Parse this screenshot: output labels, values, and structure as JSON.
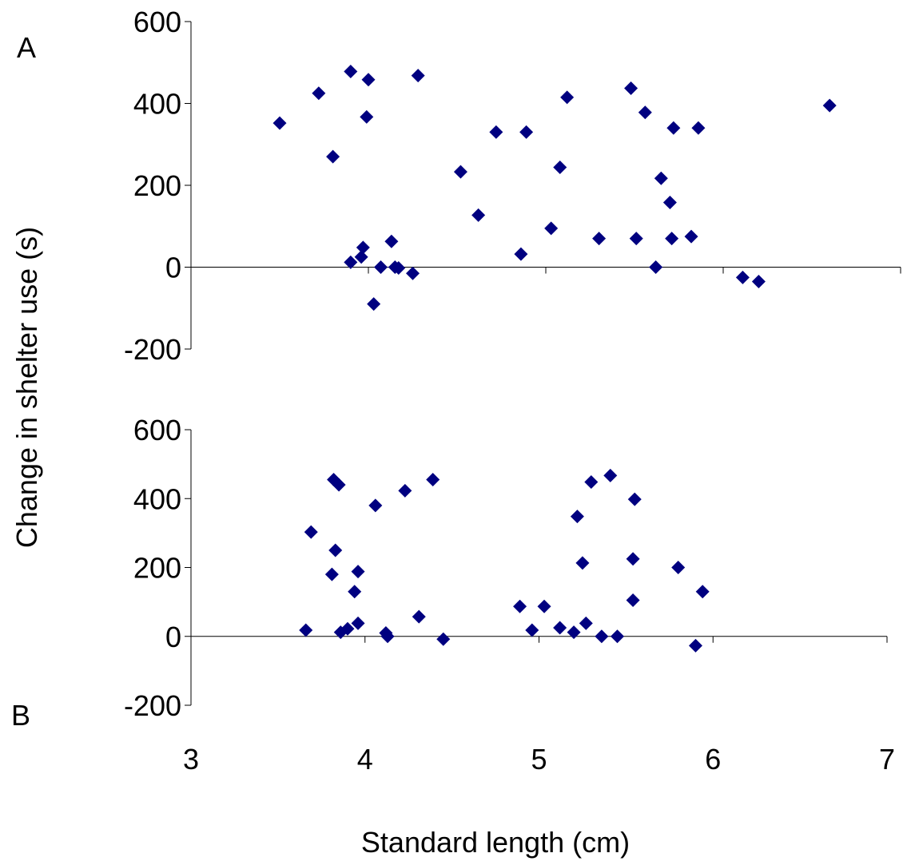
{
  "chart_data": [
    {
      "type": "scatter",
      "panel_label": "A",
      "ylabel": "Change in shelter use (s)",
      "xlabel": "Standard length (cm)",
      "xlim": [
        3,
        7
      ],
      "ylim": [
        -200,
        600
      ],
      "y_ticks": [
        "600",
        "400",
        "200",
        "0",
        "-200"
      ],
      "grid": false,
      "marker": "diamond",
      "marker_color": "#000080",
      "points": [
        [
          3.5,
          352
        ],
        [
          3.72,
          425
        ],
        [
          3.8,
          270
        ],
        [
          3.9,
          12
        ],
        [
          3.9,
          478
        ],
        [
          3.96,
          25
        ],
        [
          3.97,
          48
        ],
        [
          3.99,
          367
        ],
        [
          4.0,
          458
        ],
        [
          4.03,
          -90
        ],
        [
          4.07,
          0
        ],
        [
          4.13,
          63
        ],
        [
          4.15,
          0
        ],
        [
          4.17,
          -2
        ],
        [
          4.25,
          -15
        ],
        [
          4.28,
          468
        ],
        [
          4.52,
          233
        ],
        [
          4.62,
          127
        ],
        [
          4.72,
          330
        ],
        [
          4.86,
          32
        ],
        [
          4.89,
          330
        ],
        [
          5.03,
          95
        ],
        [
          5.08,
          244
        ],
        [
          5.12,
          415
        ],
        [
          5.3,
          70
        ],
        [
          5.48,
          437
        ],
        [
          5.51,
          70
        ],
        [
          5.56,
          378
        ],
        [
          5.62,
          0
        ],
        [
          5.65,
          217
        ],
        [
          5.7,
          158
        ],
        [
          5.71,
          70
        ],
        [
          5.72,
          340
        ],
        [
          5.82,
          75
        ],
        [
          5.86,
          340
        ],
        [
          6.11,
          -25
        ],
        [
          6.2,
          -35
        ],
        [
          6.6,
          395
        ]
      ]
    },
    {
      "type": "scatter",
      "panel_label": "B",
      "xlim": [
        3,
        7
      ],
      "ylim": [
        -200,
        600
      ],
      "x_ticks": [
        "3",
        "4",
        "5",
        "6",
        "7"
      ],
      "y_ticks": [
        "600",
        "400",
        "200",
        "0",
        "-200"
      ],
      "grid": false,
      "marker": "diamond",
      "marker_color": "#000080",
      "points": [
        [
          3.66,
          18
        ],
        [
          3.69,
          303
        ],
        [
          3.81,
          180
        ],
        [
          3.82,
          455
        ],
        [
          3.83,
          250
        ],
        [
          3.85,
          440
        ],
        [
          3.86,
          12
        ],
        [
          3.9,
          22
        ],
        [
          3.94,
          130
        ],
        [
          3.96,
          188
        ],
        [
          3.96,
          38
        ],
        [
          4.12,
          10
        ],
        [
          4.13,
          0
        ],
        [
          4.06,
          380
        ],
        [
          4.23,
          423
        ],
        [
          4.31,
          57
        ],
        [
          4.39,
          455
        ],
        [
          4.45,
          -8
        ],
        [
          4.89,
          87
        ],
        [
          4.96,
          18
        ],
        [
          5.03,
          87
        ],
        [
          5.12,
          25
        ],
        [
          5.2,
          12
        ],
        [
          5.22,
          348
        ],
        [
          5.25,
          213
        ],
        [
          5.27,
          38
        ],
        [
          5.3,
          448
        ],
        [
          5.36,
          0
        ],
        [
          5.41,
          467
        ],
        [
          5.45,
          0
        ],
        [
          5.54,
          105
        ],
        [
          5.54,
          225
        ],
        [
          5.55,
          398
        ],
        [
          5.8,
          200
        ],
        [
          5.9,
          -27
        ],
        [
          5.94,
          130
        ]
      ]
    }
  ]
}
